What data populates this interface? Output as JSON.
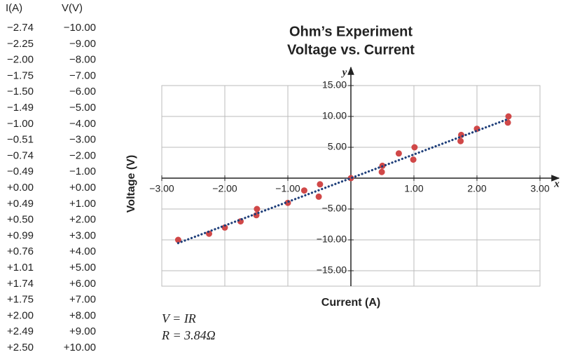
{
  "table": {
    "headers": [
      "I(A)",
      "V(V)"
    ]
  },
  "chart_data": {
    "type": "scatter",
    "title": "Ohm’s Experiment",
    "subtitle": "Voltage vs. Current",
    "x_label": "Current (A)",
    "y_label": "Voltage (V)",
    "x_axis_letter": "x",
    "y_axis_letter": "y",
    "annotations": [
      "V = IR",
      "R = 3.84Ω"
    ],
    "xlim": [
      -3,
      3
    ],
    "ylim": [
      -17.5,
      15
    ],
    "xticks": [
      {
        "value": -3,
        "label": "−3.00"
      },
      {
        "value": -2,
        "label": "−2.00"
      },
      {
        "value": -1,
        "label": "−1.00"
      },
      {
        "value": 1,
        "label": "1.00"
      },
      {
        "value": 2,
        "label": "2.00"
      },
      {
        "value": 3,
        "label": "3.00"
      }
    ],
    "yticks": [
      {
        "value": 15,
        "label": "15.00"
      },
      {
        "value": 10,
        "label": "10.00"
      },
      {
        "value": 5,
        "label": "5.00"
      },
      {
        "value": -5,
        "label": "−5.00"
      },
      {
        "value": -10,
        "label": "−10.00"
      },
      {
        "value": -15,
        "label": "−15.00"
      }
    ],
    "grid": true,
    "series": [
      {
        "color": "#d04848",
        "x": [
          -2.74,
          -2.25,
          -2.0,
          -1.75,
          -1.5,
          -1.49,
          -1.0,
          -0.51,
          -0.74,
          -0.49,
          0,
          0.49,
          0.5,
          0.99,
          0.76,
          1.01,
          1.74,
          1.75,
          2.0,
          2.49,
          2.5
        ],
        "x_labels": [
          "−2.74",
          "−2.25",
          "−2.00",
          "−1.75",
          "−1.50",
          "−1.49",
          "−1.00",
          "−0.51",
          "−0.74",
          "−0.49",
          "+0.00",
          "+0.49",
          "+0.50",
          "+0.99",
          "+0.76",
          "+1.01",
          "+1.74",
          "+1.75",
          "+2.00",
          "+2.49",
          "+2.50"
        ],
        "values": [
          -10,
          -9,
          -8,
          -7,
          -6,
          -5,
          -4,
          -3,
          -2,
          -1,
          0,
          1,
          2,
          3,
          4,
          5,
          6,
          7,
          8,
          9,
          10
        ],
        "value_labels": [
          "−10.00",
          "−9.00",
          "−8.00",
          "−7.00",
          "−6.00",
          "−5.00",
          "−4.00",
          "−3.00",
          "−2.00",
          "−1.00",
          "+0.00",
          "+1.00",
          "+2.00",
          "+3.00",
          "+4.00",
          "+5.00",
          "+6.00",
          "+7.00",
          "+8.00",
          "+9.00",
          "+10.00"
        ]
      }
    ],
    "trendline": {
      "color": "#1f3f7a",
      "x": [
        -2.74,
        2.5
      ],
      "values": [
        -10.52,
        9.6
      ]
    }
  }
}
